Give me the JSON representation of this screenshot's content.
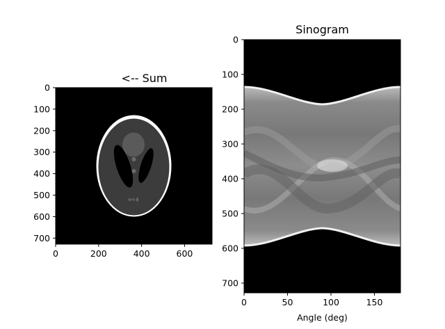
{
  "chart_data": [
    {
      "type": "image",
      "title": "<-- Sum",
      "xlabel": "",
      "ylabel": "",
      "xlim": [
        0,
        728
      ],
      "ylim": [
        728,
        0
      ],
      "xticks": [
        0,
        200,
        400,
        600
      ],
      "yticks": [
        0,
        100,
        200,
        300,
        400,
        500,
        600,
        700
      ],
      "grid": false,
      "content": "shepp-logan-phantom",
      "colormap": "gray",
      "phantom_center": [
        364,
        364
      ],
      "phantom_outer_semi_axes": [
        340,
        250
      ]
    },
    {
      "type": "image",
      "title": "Sinogram",
      "xlabel": "Angle (deg)",
      "ylabel": "",
      "xlim": [
        0,
        180
      ],
      "ylim": [
        728,
        0
      ],
      "xticks": [
        0,
        50,
        100,
        150
      ],
      "yticks": [
        0,
        100,
        200,
        300,
        400,
        500,
        600,
        700
      ],
      "grid": false,
      "content": "radon-transform-sinogram",
      "colormap": "gray",
      "support_top_at_0deg": 135,
      "support_top_at_90deg": 187,
      "support_bottom_at_0deg": 593,
      "support_bottom_at_90deg": 541
    }
  ]
}
